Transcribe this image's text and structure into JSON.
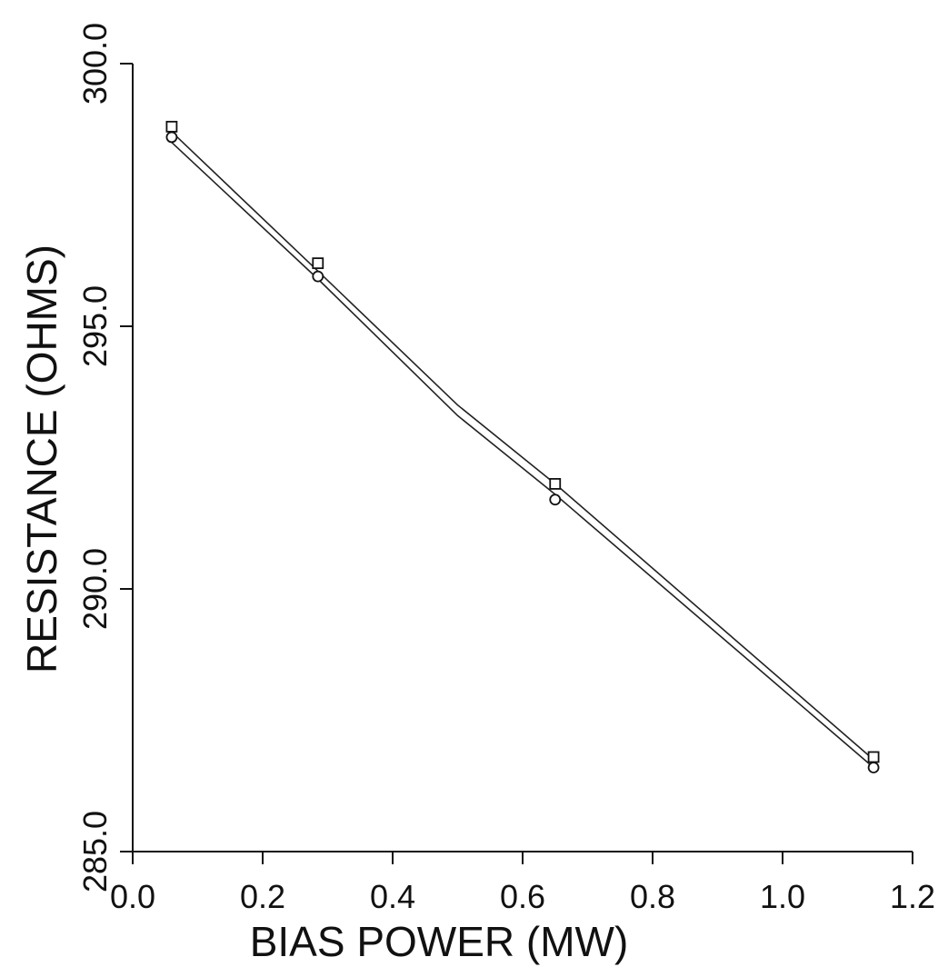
{
  "chart_data": {
    "type": "line",
    "title": "",
    "xlabel": "BIAS POWER (MW)",
    "ylabel": "RESISTANCE (OHMS)",
    "xlim": [
      0.0,
      1.2
    ],
    "ylim": [
      285.0,
      300.0
    ],
    "x_ticks": [
      "0.0",
      "0.2",
      "0.4",
      "0.6",
      "0.8",
      "1.0",
      "1.2"
    ],
    "x_tick_values": [
      0.0,
      0.2,
      0.4,
      0.6,
      0.8,
      1.0,
      1.2
    ],
    "y_ticks": [
      "285.0",
      "290.0",
      "295.0",
      "300.0"
    ],
    "y_tick_values": [
      285.0,
      290.0,
      295.0,
      300.0
    ],
    "grid": false,
    "legend": "none",
    "series": [
      {
        "marker": "square",
        "x": [
          0.06,
          0.285,
          0.65,
          1.14
        ],
        "y": [
          298.8,
          296.2,
          292.0,
          286.8
        ],
        "line": {
          "x": [
            0.06,
            0.285,
            0.5,
            0.65,
            1.14
          ],
          "y": [
            298.7,
            296.05,
            293.5,
            292.0,
            286.75
          ]
        }
      },
      {
        "marker": "circle",
        "x": [
          0.06,
          0.285,
          0.65,
          1.14
        ],
        "y": [
          298.6,
          295.95,
          291.7,
          286.6
        ],
        "line": {
          "x": [
            0.06,
            0.285,
            0.5,
            0.65,
            1.14
          ],
          "y": [
            298.5,
            295.9,
            293.3,
            291.8,
            286.6
          ]
        }
      }
    ]
  }
}
